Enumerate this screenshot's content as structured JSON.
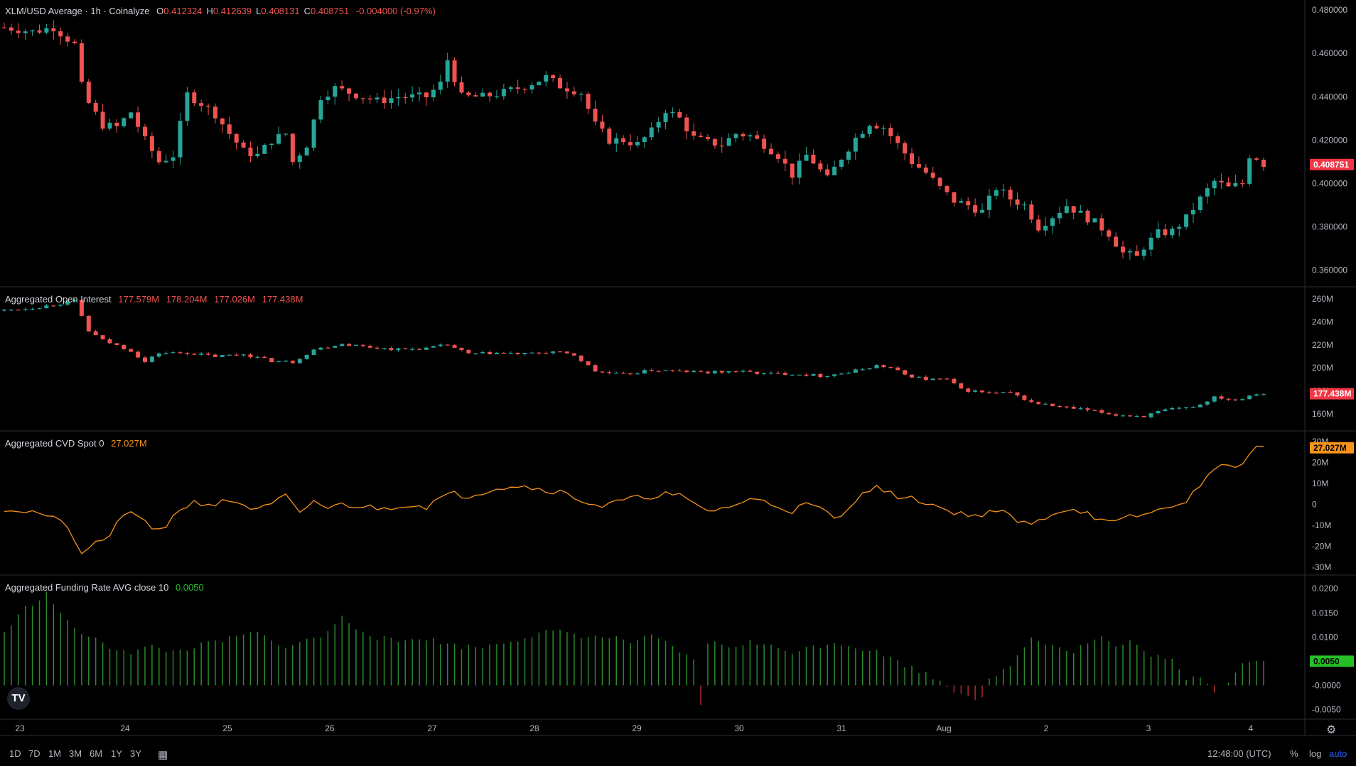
{
  "panes": {
    "price": {
      "title": "XLM/USD Average · 1h · Coinalyze",
      "ohlc": [
        {
          "label": "O",
          "value": "0.412324"
        },
        {
          "label": "H",
          "value": "0.412639"
        },
        {
          "label": "L",
          "value": "0.408131"
        },
        {
          "label": "C",
          "value": "0.408751"
        }
      ],
      "change": "-0.004000 (-0.97%)",
      "last_badge": "0.408751"
    },
    "oi": {
      "title": "Aggregated Open Interest",
      "values": [
        "177.579M",
        "178.204M",
        "177.026M",
        "177.438M"
      ],
      "last_badge": "177.438M"
    },
    "cvd": {
      "title": "Aggregated CVD Spot 0",
      "value": "27.027M",
      "last_badge": "27.027M"
    },
    "funding": {
      "title": "Aggregated Funding Rate AVG close 10",
      "value": "0.0050",
      "last_badge": "0.0050"
    }
  },
  "colors": {
    "up": "#26a69a",
    "down": "#ef5350",
    "cvd": "#f7931a",
    "funding": "#2a8a2a",
    "badge_oi": "#f23645",
    "badge_cvd": "#f7931a",
    "badge_funding": "#26c026"
  },
  "toolbar": {
    "timeframes": [
      "1D",
      "7D",
      "1M",
      "3M",
      "6M",
      "1Y",
      "3Y"
    ],
    "clock": "12:48:00 (UTC)",
    "scale_buttons": [
      "%",
      "log",
      "auto"
    ],
    "logo_text": "TV"
  },
  "chart_data": [
    {
      "type": "candlestick",
      "title": "XLM/USD Average · 1h · Coinalyze",
      "x_ticks": [
        "23",
        "24",
        "25",
        "26",
        "27",
        "28",
        "29",
        "30",
        "31",
        "Aug",
        "2",
        "3",
        "4"
      ],
      "y_ticks": [
        "0.480000",
        "0.460000",
        "0.440000",
        "0.420000",
        "0.400000",
        "0.380000",
        "0.360000"
      ],
      "ylim": [
        0.355,
        0.482
      ],
      "close_path": [
        [
          0,
          0.472
        ],
        [
          4,
          0.47
        ],
        [
          7,
          0.472
        ],
        [
          10,
          0.464
        ],
        [
          11,
          0.445
        ],
        [
          12,
          0.437
        ],
        [
          14,
          0.427
        ],
        [
          16,
          0.426
        ],
        [
          18,
          0.433
        ],
        [
          20,
          0.42
        ],
        [
          22,
          0.41
        ],
        [
          24,
          0.413
        ],
        [
          26,
          0.441
        ],
        [
          28,
          0.437
        ],
        [
          30,
          0.432
        ],
        [
          32,
          0.423
        ],
        [
          34,
          0.415
        ],
        [
          36,
          0.413
        ],
        [
          38,
          0.42
        ],
        [
          40,
          0.423
        ],
        [
          41,
          0.41
        ],
        [
          43,
          0.418
        ],
        [
          45,
          0.44
        ],
        [
          47,
          0.444
        ],
        [
          50,
          0.441
        ],
        [
          53,
          0.438
        ],
        [
          56,
          0.44
        ],
        [
          60,
          0.44
        ],
        [
          62,
          0.446
        ],
        [
          63,
          0.457
        ],
        [
          65,
          0.44
        ],
        [
          68,
          0.44
        ],
        [
          71,
          0.442
        ],
        [
          74,
          0.445
        ],
        [
          77,
          0.449
        ],
        [
          79,
          0.445
        ],
        [
          82,
          0.442
        ],
        [
          84,
          0.427
        ],
        [
          86,
          0.42
        ],
        [
          88,
          0.42
        ],
        [
          90,
          0.418
        ],
        [
          92,
          0.424
        ],
        [
          94,
          0.434
        ],
        [
          96,
          0.43
        ],
        [
          98,
          0.421
        ],
        [
          100,
          0.419
        ],
        [
          102,
          0.418
        ],
        [
          104,
          0.423
        ],
        [
          106,
          0.422
        ],
        [
          108,
          0.418
        ],
        [
          110,
          0.413
        ],
        [
          112,
          0.404
        ],
        [
          114,
          0.413
        ],
        [
          115,
          0.41
        ],
        [
          117,
          0.402
        ],
        [
          119,
          0.412
        ],
        [
          121,
          0.421
        ],
        [
          123,
          0.428
        ],
        [
          125,
          0.426
        ],
        [
          127,
          0.418
        ],
        [
          129,
          0.41
        ],
        [
          131,
          0.405
        ],
        [
          133,
          0.398
        ],
        [
          135,
          0.392
        ],
        [
          137,
          0.39
        ],
        [
          139,
          0.387
        ],
        [
          141,
          0.398
        ],
        [
          143,
          0.393
        ],
        [
          145,
          0.39
        ],
        [
          147,
          0.38
        ],
        [
          149,
          0.385
        ],
        [
          151,
          0.39
        ],
        [
          153,
          0.386
        ],
        [
          155,
          0.382
        ],
        [
          157,
          0.377
        ],
        [
          159,
          0.368
        ],
        [
          161,
          0.366
        ],
        [
          162,
          0.371
        ],
        [
          164,
          0.377
        ],
        [
          166,
          0.378
        ],
        [
          168,
          0.384
        ],
        [
          170,
          0.393
        ],
        [
          172,
          0.401
        ],
        [
          174,
          0.398
        ],
        [
          176,
          0.4
        ],
        [
          177,
          0.413
        ],
        [
          178,
          0.412
        ],
        [
          179,
          0.409
        ]
      ],
      "last_value": "0.408751"
    },
    {
      "type": "candlestick",
      "title": "Aggregated Open Interest",
      "y_ticks": [
        "260M",
        "240M",
        "220M",
        "200M",
        "180M",
        "160M"
      ],
      "ylim": [
        150,
        265
      ],
      "close_path": [
        [
          0,
          250
        ],
        [
          5,
          253
        ],
        [
          10,
          258
        ],
        [
          12,
          232
        ],
        [
          14,
          224
        ],
        [
          18,
          215
        ],
        [
          20,
          205
        ],
        [
          22,
          213
        ],
        [
          26,
          213
        ],
        [
          30,
          210
        ],
        [
          34,
          212
        ],
        [
          38,
          206
        ],
        [
          41,
          205
        ],
        [
          44,
          216
        ],
        [
          48,
          221
        ],
        [
          52,
          218
        ],
        [
          56,
          216
        ],
        [
          60,
          217
        ],
        [
          63,
          220
        ],
        [
          66,
          212
        ],
        [
          70,
          213
        ],
        [
          74,
          212
        ],
        [
          78,
          214
        ],
        [
          81,
          211
        ],
        [
          84,
          197
        ],
        [
          88,
          194
        ],
        [
          92,
          198
        ],
        [
          96,
          197
        ],
        [
          100,
          196
        ],
        [
          104,
          197
        ],
        [
          108,
          195
        ],
        [
          112,
          195
        ],
        [
          116,
          193
        ],
        [
          120,
          196
        ],
        [
          124,
          202
        ],
        [
          126,
          200
        ],
        [
          128,
          194
        ],
        [
          131,
          190
        ],
        [
          134,
          190
        ],
        [
          136,
          181
        ],
        [
          140,
          178
        ],
        [
          143,
          178
        ],
        [
          146,
          170
        ],
        [
          150,
          166
        ],
        [
          154,
          163
        ],
        [
          158,
          159
        ],
        [
          162,
          158
        ],
        [
          165,
          163
        ],
        [
          168,
          165
        ],
        [
          170,
          168
        ],
        [
          172,
          175
        ],
        [
          175,
          172
        ],
        [
          178,
          178
        ],
        [
          179,
          177.4
        ]
      ],
      "last_value": "177.438M"
    },
    {
      "type": "line",
      "title": "Aggregated CVD Spot 0",
      "y_ticks": [
        "30M",
        "20M",
        "10M",
        "0",
        "-10M",
        "-20M",
        "-30M"
      ],
      "ylim": [
        -31,
        32
      ],
      "series_values": [
        [
          0,
          -2
        ],
        [
          5,
          -4
        ],
        [
          9,
          -10
        ],
        [
          11,
          -25
        ],
        [
          13,
          -18
        ],
        [
          15,
          -15
        ],
        [
          17,
          -4
        ],
        [
          19,
          -6
        ],
        [
          21,
          -12
        ],
        [
          23,
          -10
        ],
        [
          25,
          -2
        ],
        [
          27,
          1
        ],
        [
          30,
          0
        ],
        [
          32,
          2
        ],
        [
          34,
          0
        ],
        [
          36,
          -3
        ],
        [
          38,
          0
        ],
        [
          40,
          4
        ],
        [
          42,
          -5
        ],
        [
          44,
          2
        ],
        [
          46,
          -2
        ],
        [
          48,
          0
        ],
        [
          51,
          -1
        ],
        [
          54,
          -2
        ],
        [
          57,
          0
        ],
        [
          60,
          -1
        ],
        [
          62,
          3
        ],
        [
          64,
          5
        ],
        [
          66,
          4
        ],
        [
          68,
          6
        ],
        [
          70,
          8
        ],
        [
          73,
          9
        ],
        [
          75,
          8
        ],
        [
          77,
          7
        ],
        [
          79,
          6
        ],
        [
          82,
          2
        ],
        [
          85,
          -1
        ],
        [
          88,
          2
        ],
        [
          90,
          3
        ],
        [
          92,
          4
        ],
        [
          94,
          5
        ],
        [
          96,
          4
        ],
        [
          98,
          0
        ],
        [
          100,
          -3
        ],
        [
          102,
          -2
        ],
        [
          104,
          0
        ],
        [
          106,
          2
        ],
        [
          108,
          2
        ],
        [
          110,
          -1
        ],
        [
          112,
          -3
        ],
        [
          114,
          0
        ],
        [
          116,
          -2
        ],
        [
          118,
          -7
        ],
        [
          120,
          -3
        ],
        [
          122,
          7
        ],
        [
          124,
          8
        ],
        [
          126,
          5
        ],
        [
          128,
          3
        ],
        [
          130,
          2
        ],
        [
          132,
          0
        ],
        [
          134,
          -3
        ],
        [
          136,
          -4
        ],
        [
          138,
          -6
        ],
        [
          140,
          -3
        ],
        [
          142,
          -4
        ],
        [
          144,
          -8
        ],
        [
          146,
          -10
        ],
        [
          148,
          -6
        ],
        [
          150,
          -3
        ],
        [
          152,
          -2
        ],
        [
          154,
          -4
        ],
        [
          156,
          -8
        ],
        [
          158,
          -9
        ],
        [
          160,
          -6
        ],
        [
          162,
          -5
        ],
        [
          164,
          -3
        ],
        [
          166,
          0
        ],
        [
          168,
          0
        ],
        [
          169,
          5
        ],
        [
          171,
          15
        ],
        [
          173,
          18
        ],
        [
          175,
          18
        ],
        [
          176,
          20
        ],
        [
          177,
          25
        ],
        [
          178,
          27
        ],
        [
          179,
          27
        ]
      ],
      "last_value": "27.027M"
    },
    {
      "type": "bar",
      "title": "Aggregated Funding Rate AVG close 10",
      "y_ticks": [
        "0.0200",
        "0.0150",
        "0.0100",
        "-0.0000",
        "-0.0050"
      ],
      "ylim": [
        -0.0058,
        0.0215
      ],
      "profile": [
        [
          0,
          0.011
        ],
        [
          3,
          0.016
        ],
        [
          6,
          0.019
        ],
        [
          9,
          0.013
        ],
        [
          12,
          0.01
        ],
        [
          15,
          0.008
        ],
        [
          18,
          0.007
        ],
        [
          21,
          0.008
        ],
        [
          24,
          0.007
        ],
        [
          27,
          0.008
        ],
        [
          30,
          0.009
        ],
        [
          33,
          0.01
        ],
        [
          36,
          0.011
        ],
        [
          39,
          0.008
        ],
        [
          42,
          0.009
        ],
        [
          45,
          0.01
        ],
        [
          48,
          0.014
        ],
        [
          50,
          0.012
        ],
        [
          53,
          0.01
        ],
        [
          56,
          0.009
        ],
        [
          59,
          0.01
        ],
        [
          62,
          0.009
        ],
        [
          65,
          0.008
        ],
        [
          68,
          0.008
        ],
        [
          71,
          0.009
        ],
        [
          74,
          0.01
        ],
        [
          77,
          0.011
        ],
        [
          80,
          0.011
        ],
        [
          83,
          0.01
        ],
        [
          86,
          0.01
        ],
        [
          89,
          0.009
        ],
        [
          92,
          0.01
        ],
        [
          95,
          0.008
        ],
        [
          98,
          0.005
        ],
        [
          99,
          -0.004
        ],
        [
          100,
          0.009
        ],
        [
          103,
          0.008
        ],
        [
          106,
          0.009
        ],
        [
          109,
          0.008
        ],
        [
          112,
          0.007
        ],
        [
          115,
          0.008
        ],
        [
          118,
          0.009
        ],
        [
          121,
          0.008
        ],
        [
          124,
          0.007
        ],
        [
          127,
          0.005
        ],
        [
          130,
          0.003
        ],
        [
          133,
          0.001
        ],
        [
          135,
          -0.001
        ],
        [
          137,
          -0.002
        ],
        [
          139,
          -0.003
        ],
        [
          140,
          0.001
        ],
        [
          142,
          0.003
        ],
        [
          144,
          0.006
        ],
        [
          146,
          0.01
        ],
        [
          148,
          0.009
        ],
        [
          150,
          0.008
        ],
        [
          152,
          0.007
        ],
        [
          154,
          0.009
        ],
        [
          156,
          0.01
        ],
        [
          158,
          0.008
        ],
        [
          160,
          0.009
        ],
        [
          162,
          0.007
        ],
        [
          164,
          0.006
        ],
        [
          166,
          0.005
        ],
        [
          168,
          0.001
        ],
        [
          170,
          0.002
        ],
        [
          172,
          -0.001
        ],
        [
          174,
          0.001
        ],
        [
          176,
          0.005
        ],
        [
          178,
          0.005
        ],
        [
          179,
          0.005
        ]
      ],
      "last_value": "0.0050"
    }
  ]
}
